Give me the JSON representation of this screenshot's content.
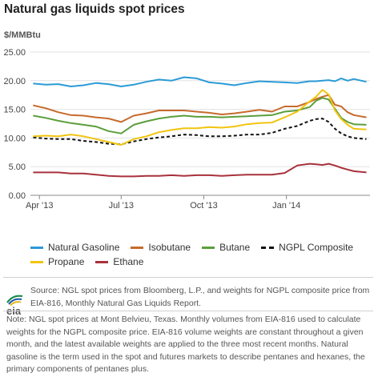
{
  "title": "Natural gas liquids spot prices",
  "chart_data": {
    "type": "line",
    "ylabel": "$/MMBtu",
    "ylim": [
      0,
      25
    ],
    "yticks": [
      "0.00",
      "5.00",
      "10.00",
      "15.00",
      "20.00",
      "25.00"
    ],
    "xlim": [
      "2013-03-22",
      "2014-04-04"
    ],
    "xticks": [
      {
        "label": "Apr '13",
        "date": "2013-04-01"
      },
      {
        "label": "Jul '13",
        "date": "2013-07-01"
      },
      {
        "label": "Oct '13",
        "date": "2013-10-01"
      },
      {
        "label": "Jan '14",
        "date": "2014-01-01"
      }
    ],
    "x": [
      "2013-03-25",
      "2013-04-08",
      "2013-04-22",
      "2013-05-06",
      "2013-05-20",
      "2013-06-03",
      "2013-06-17",
      "2013-07-01",
      "2013-07-15",
      "2013-07-29",
      "2013-08-12",
      "2013-08-26",
      "2013-09-09",
      "2013-09-23",
      "2013-10-07",
      "2013-10-21",
      "2013-11-04",
      "2013-11-18",
      "2013-12-02",
      "2013-12-16",
      "2013-12-30",
      "2014-01-13",
      "2014-01-27",
      "2014-02-03",
      "2014-02-10",
      "2014-02-17",
      "2014-02-24",
      "2014-03-03",
      "2014-03-10",
      "2014-03-17",
      "2014-03-31"
    ],
    "series": [
      {
        "name": "Natural Gasoline",
        "color": "#2b9bd6",
        "dash": false,
        "values": [
          19.5,
          19.3,
          19.4,
          19.0,
          19.2,
          19.6,
          19.4,
          19.0,
          19.3,
          19.8,
          20.2,
          20.0,
          20.6,
          20.4,
          19.7,
          19.5,
          19.2,
          19.6,
          19.9,
          19.8,
          19.7,
          19.6,
          19.9,
          19.9,
          20.0,
          20.1,
          19.9,
          20.4,
          20.0,
          20.3,
          19.8
        ]
      },
      {
        "name": "Isobutane",
        "color": "#c66b2c",
        "dash": false,
        "values": [
          15.7,
          15.2,
          14.5,
          14.0,
          13.9,
          13.6,
          13.4,
          12.8,
          13.9,
          14.3,
          14.8,
          14.8,
          14.8,
          14.6,
          14.4,
          14.1,
          14.3,
          14.6,
          14.9,
          14.6,
          15.5,
          15.5,
          16.3,
          16.8,
          17.2,
          17.5,
          15.8,
          15.5,
          14.5,
          14.0,
          13.6
        ]
      },
      {
        "name": "Butane",
        "color": "#5c9e3b",
        "dash": false,
        "values": [
          13.9,
          13.5,
          13.0,
          12.6,
          12.3,
          12.0,
          11.2,
          10.8,
          12.3,
          12.9,
          13.4,
          13.7,
          13.9,
          13.7,
          13.7,
          13.6,
          13.7,
          13.8,
          13.9,
          14.0,
          14.6,
          14.8,
          15.4,
          16.5,
          17.0,
          16.7,
          15.1,
          13.5,
          12.8,
          12.4,
          12.3
        ]
      },
      {
        "name": "NGPL Composite",
        "color": "#111111",
        "dash": true,
        "values": [
          10.1,
          9.9,
          9.8,
          9.8,
          9.5,
          9.3,
          9.0,
          8.9,
          9.4,
          9.8,
          10.1,
          10.3,
          10.6,
          10.5,
          10.3,
          10.3,
          10.4,
          10.6,
          10.6,
          10.9,
          11.6,
          12.1,
          13.0,
          13.3,
          13.4,
          12.8,
          11.6,
          10.8,
          10.3,
          10.0,
          9.8
        ]
      },
      {
        "name": "Propane",
        "color": "#f2c40f",
        "dash": false,
        "values": [
          10.3,
          10.4,
          10.3,
          10.6,
          10.3,
          9.8,
          9.3,
          8.8,
          9.8,
          10.3,
          11.0,
          11.4,
          11.7,
          11.7,
          11.9,
          11.8,
          12.0,
          12.4,
          12.6,
          12.7,
          13.6,
          14.6,
          16.4,
          17.2,
          18.4,
          17.6,
          14.8,
          13.3,
          12.3,
          11.6,
          11.5
        ]
      },
      {
        "name": "Ethane",
        "color": "#a8313c",
        "dash": false,
        "values": [
          4.0,
          4.0,
          4.0,
          3.8,
          3.8,
          3.6,
          3.4,
          3.3,
          3.3,
          3.4,
          3.4,
          3.5,
          3.4,
          3.5,
          3.5,
          3.4,
          3.5,
          3.6,
          3.6,
          3.6,
          3.9,
          5.2,
          5.5,
          5.4,
          5.3,
          5.5,
          5.2,
          4.8,
          4.5,
          4.2,
          4.0
        ]
      }
    ]
  },
  "source_text": "Source: NGL spot prices from Bloomberg, L.P., and weights for NGPL composite price from EIA-816, Monthly Natural Gas Liquids Report.",
  "note_text": "Note: NGL spot prices at Mont Belvieu, Texas. Monthly volumes from EIA-816 used to calculate weights for the NGPL composite price. EIA-816 volume weights are constant throughout a given month, and the latest available weights are applied to the three most recent months. Natural gasoline is the term used in the spot and futures markets to describe pentanes and hexanes, the primary components of pentanes plus.",
  "logo": {
    "text": "eia",
    "colors": [
      "#1a8a4a",
      "#1e5aa8",
      "#e8b40c"
    ]
  }
}
